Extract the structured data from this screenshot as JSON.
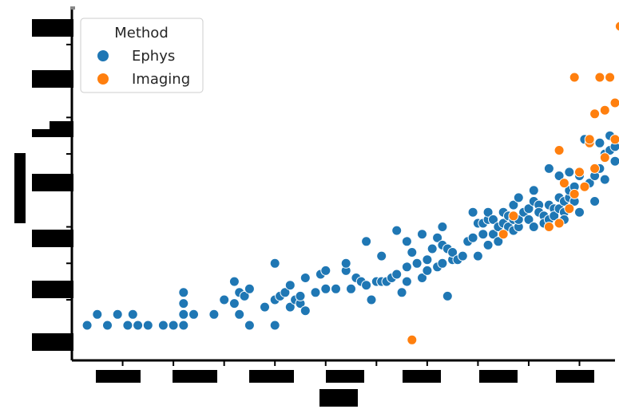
{
  "chart_data": {
    "type": "scatter",
    "title": "",
    "xlabel": "",
    "ylabel": "",
    "xlim": [
      1920,
      2025
    ],
    "ylim": [
      -0.2,
      4.5
    ],
    "x_ticks": [
      1930,
      1940,
      1950,
      1960,
      1970,
      1980,
      1990,
      2000,
      2010,
      2020
    ],
    "y_ticks": [
      0,
      0.5,
      1,
      1.5,
      2,
      2.5,
      3,
      3.5,
      4
    ],
    "tick_labels_redacted": true,
    "grid": false,
    "legend": {
      "title": "Method",
      "placement": "top-left"
    },
    "series": [
      {
        "name": "Ephys",
        "color": "#1f77b4",
        "points": [
          [
            1923,
            0.15
          ],
          [
            1925,
            0.3
          ],
          [
            1927,
            0.15
          ],
          [
            1929,
            0.3
          ],
          [
            1931,
            0.15
          ],
          [
            1932,
            0.3
          ],
          [
            1933,
            0.15
          ],
          [
            1935,
            0.15
          ],
          [
            1938,
            0.15
          ],
          [
            1940,
            0.15
          ],
          [
            1942,
            0.15
          ],
          [
            1942,
            0.3
          ],
          [
            1942,
            0.45
          ],
          [
            1942,
            0.6
          ],
          [
            1944,
            0.3
          ],
          [
            1948,
            0.3
          ],
          [
            1950,
            0.5
          ],
          [
            1952,
            0.45
          ],
          [
            1952,
            0.75
          ],
          [
            1953,
            0.3
          ],
          [
            1953,
            0.6
          ],
          [
            1954,
            0.55
          ],
          [
            1955,
            0.15
          ],
          [
            1955,
            0.65
          ],
          [
            1958,
            0.4
          ],
          [
            1960,
            0.15
          ],
          [
            1960,
            0.5
          ],
          [
            1960,
            1.0
          ],
          [
            1961,
            0.55
          ],
          [
            1962,
            0.6
          ],
          [
            1963,
            0.4
          ],
          [
            1963,
            0.7
          ],
          [
            1964,
            0.5
          ],
          [
            1965,
            0.45
          ],
          [
            1965,
            0.55
          ],
          [
            1966,
            0.35
          ],
          [
            1966,
            0.8
          ],
          [
            1968,
            0.6
          ],
          [
            1969,
            0.85
          ],
          [
            1970,
            0.65
          ],
          [
            1970,
            0.9
          ],
          [
            1972,
            0.65
          ],
          [
            1974,
            0.9
          ],
          [
            1974,
            1.0
          ],
          [
            1975,
            0.65
          ],
          [
            1976,
            0.8
          ],
          [
            1977,
            0.75
          ],
          [
            1978,
            0.7
          ],
          [
            1978,
            1.3
          ],
          [
            1979,
            0.5
          ],
          [
            1980,
            0.75
          ],
          [
            1981,
            0.75
          ],
          [
            1981,
            1.1
          ],
          [
            1982,
            0.75
          ],
          [
            1983,
            0.8
          ],
          [
            1984,
            0.85
          ],
          [
            1984,
            1.45
          ],
          [
            1985,
            0.6
          ],
          [
            1986,
            0.75
          ],
          [
            1986,
            0.95
          ],
          [
            1986,
            1.3
          ],
          [
            1987,
            1.15
          ],
          [
            1988,
            1.0
          ],
          [
            1989,
            1.4
          ],
          [
            1989,
            0.8
          ],
          [
            1990,
            1.05
          ],
          [
            1990,
            0.9
          ],
          [
            1991,
            1.2
          ],
          [
            1992,
            0.95
          ],
          [
            1992,
            1.35
          ],
          [
            1993,
            1.0
          ],
          [
            1993,
            1.25
          ],
          [
            1993,
            1.5
          ],
          [
            1994,
            1.2
          ],
          [
            1994,
            0.55
          ],
          [
            1995,
            1.05
          ],
          [
            1995,
            1.15
          ],
          [
            1996,
            1.05
          ],
          [
            1997,
            1.1
          ],
          [
            1998,
            1.3
          ],
          [
            1999,
            1.35
          ],
          [
            1999,
            1.7
          ],
          [
            2000,
            1.1
          ],
          [
            2000,
            1.55
          ],
          [
            2001,
            1.4
          ],
          [
            2001,
            1.55
          ],
          [
            2002,
            1.25
          ],
          [
            2002,
            1.6
          ],
          [
            2002,
            1.7
          ],
          [
            2003,
            1.4
          ],
          [
            2003,
            1.6
          ],
          [
            2004,
            1.3
          ],
          [
            2004,
            1.5
          ],
          [
            2005,
            1.7
          ],
          [
            2005,
            1.55
          ],
          [
            2006,
            1.5
          ],
          [
            2006,
            1.65
          ],
          [
            2007,
            1.45
          ],
          [
            2007,
            1.6
          ],
          [
            2007,
            1.8
          ],
          [
            2008,
            1.9
          ],
          [
            2008,
            1.5
          ],
          [
            2008,
            1.6
          ],
          [
            2009,
            1.7
          ],
          [
            2010,
            1.6
          ],
          [
            2010,
            1.75
          ],
          [
            2011,
            1.5
          ],
          [
            2011,
            2.0
          ],
          [
            2011,
            1.85
          ],
          [
            2012,
            1.8
          ],
          [
            2012,
            1.7
          ],
          [
            2013,
            1.65
          ],
          [
            2013,
            1.55
          ],
          [
            2014,
            1.8
          ],
          [
            2014,
            1.6
          ],
          [
            2014,
            2.3
          ],
          [
            2015,
            1.75
          ],
          [
            2015,
            1.65
          ],
          [
            2016,
            1.9
          ],
          [
            2016,
            1.75
          ],
          [
            2016,
            2.2
          ],
          [
            2017,
            1.7
          ],
          [
            2017,
            1.85
          ],
          [
            2017,
            1.6
          ],
          [
            2018,
            1.9
          ],
          [
            2018,
            2.0
          ],
          [
            2018,
            2.25
          ],
          [
            2019,
            1.85
          ],
          [
            2019,
            2.05
          ],
          [
            2020,
            2.2
          ],
          [
            2020,
            1.7
          ],
          [
            2021,
            2.05
          ],
          [
            2021,
            2.7
          ],
          [
            2022,
            2.1
          ],
          [
            2023,
            2.2
          ],
          [
            2023,
            1.85
          ],
          [
            2024,
            2.65
          ],
          [
            2024,
            2.3
          ],
          [
            2025,
            2.15
          ],
          [
            2025,
            2.5
          ],
          [
            2026,
            2.55
          ],
          [
            2026,
            2.75
          ],
          [
            2027,
            2.4
          ],
          [
            2027,
            2.6
          ]
        ]
      },
      {
        "name": "Imaging",
        "color": "#ff7f0e",
        "points": [
          [
            1987,
            -0.05
          ],
          [
            2005,
            1.4
          ],
          [
            2007,
            1.65
          ],
          [
            2014,
            1.5
          ],
          [
            2016,
            1.55
          ],
          [
            2016,
            2.55
          ],
          [
            2017,
            2.1
          ],
          [
            2018,
            1.75
          ],
          [
            2019,
            1.95
          ],
          [
            2019,
            3.55
          ],
          [
            2020,
            2.25
          ],
          [
            2021,
            2.05
          ],
          [
            2022,
            2.65
          ],
          [
            2022,
            2.7
          ],
          [
            2023,
            2.3
          ],
          [
            2023,
            3.05
          ],
          [
            2024,
            3.55
          ],
          [
            2025,
            2.45
          ],
          [
            2025,
            3.1
          ],
          [
            2026,
            3.55
          ],
          [
            2027,
            2.7
          ],
          [
            2027,
            3.2
          ],
          [
            2028,
            4.25
          ]
        ]
      }
    ]
  }
}
